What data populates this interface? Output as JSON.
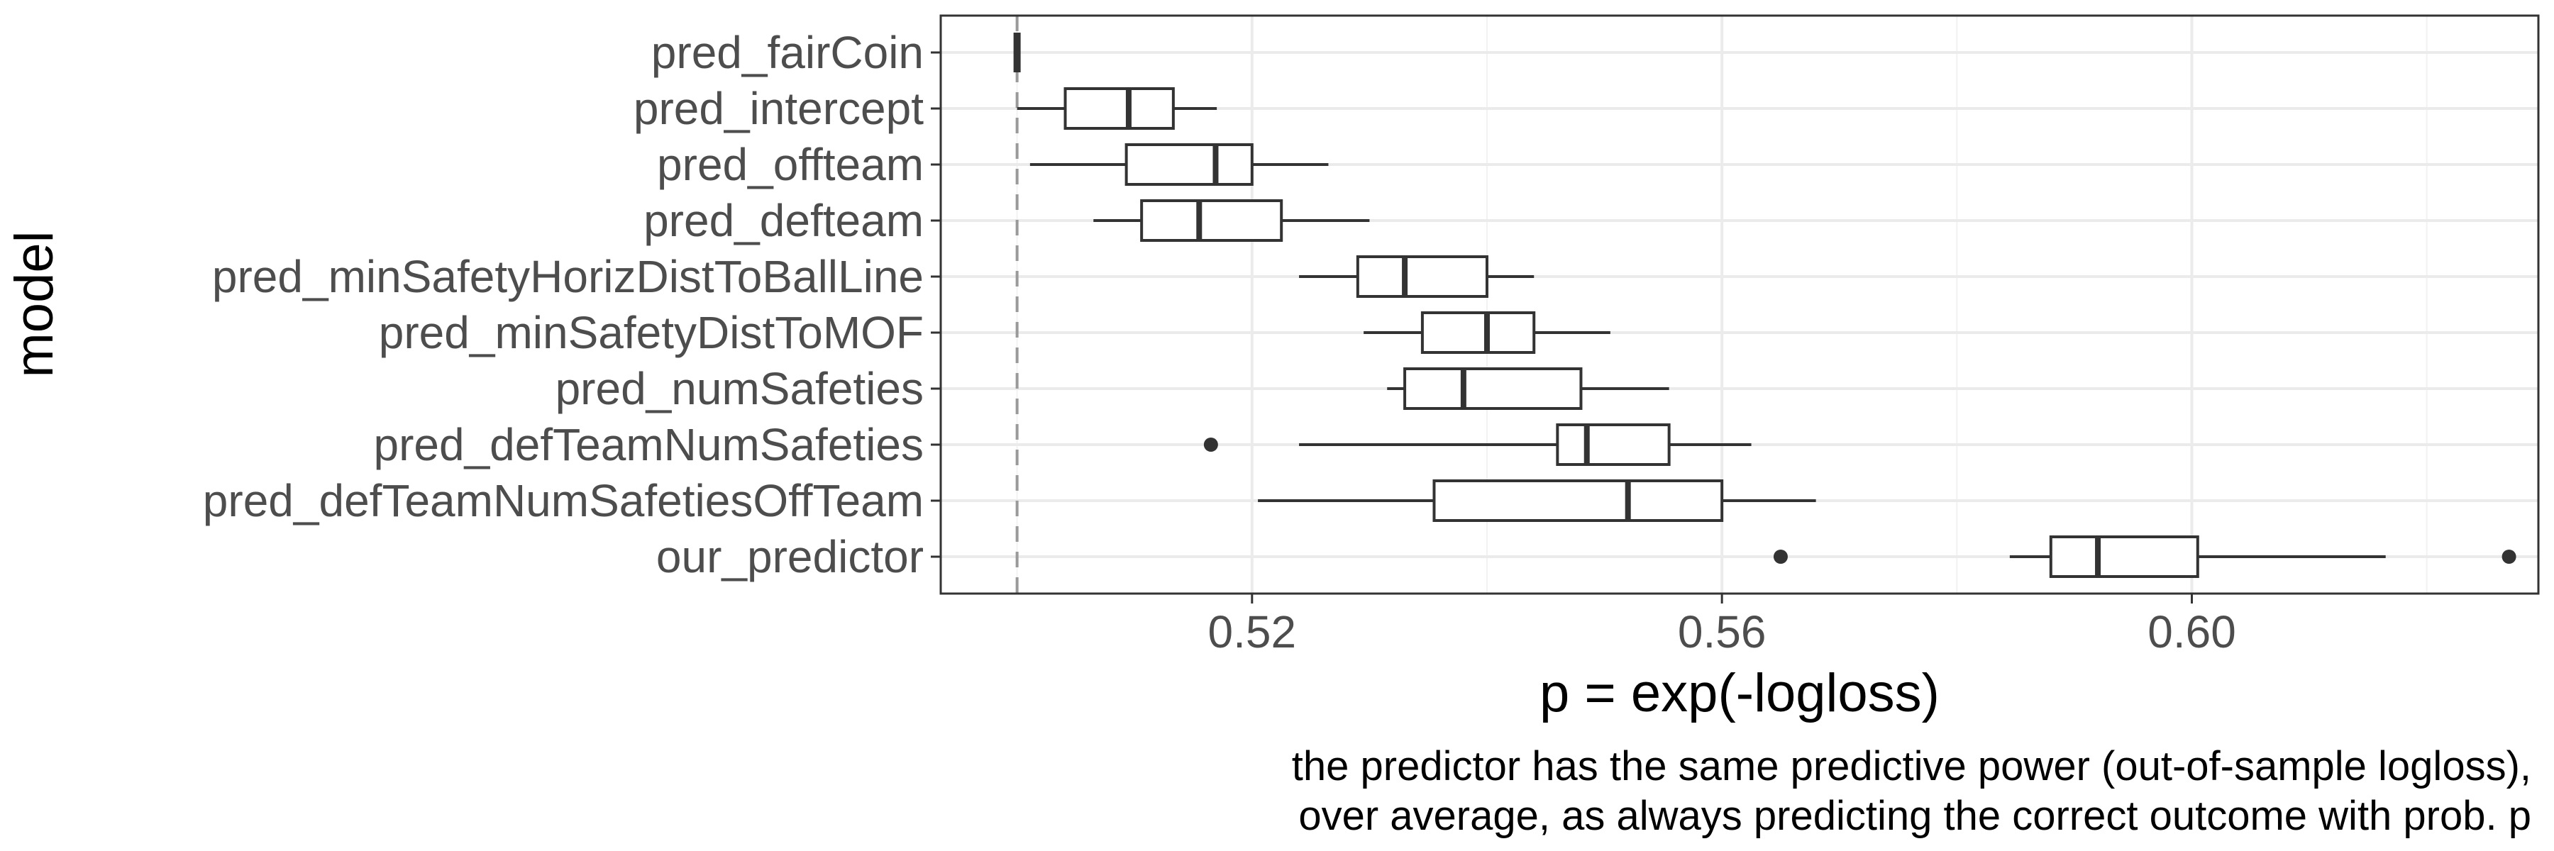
{
  "chart_data": {
    "type": "boxplot",
    "orientation": "horizontal",
    "title": "",
    "xlabel": "p = exp(-logloss)",
    "ylabel": "model",
    "caption_lines": [
      "the predictor has the same predictive power (out-of-sample logloss),",
      "over average, as always predicting the correct outcome with prob. p"
    ],
    "xlim": [
      0.4935,
      0.6295
    ],
    "xticks": [
      0.52,
      0.56,
      0.6
    ],
    "xtick_labels": [
      "0.52",
      "0.56",
      "0.60"
    ],
    "grid": true,
    "reference_line": {
      "x": 0.5,
      "style": "dashed"
    },
    "categories": [
      "pred_fairCoin",
      "pred_intercept",
      "pred_offteam",
      "pred_defteam",
      "pred_minSafetyHorizDistToBallLine",
      "pred_minSafetyDistToMOF",
      "pred_numSafeties",
      "pred_defTeamNumSafeties",
      "pred_defTeamNumSafetiesOffTeam",
      "our_predictor"
    ],
    "boxes": [
      {
        "whisker_low": 0.5,
        "q1": 0.5,
        "median": 0.5,
        "q3": 0.5,
        "whisker_high": 0.5,
        "outliers": []
      },
      {
        "whisker_low": 0.5,
        "q1": 0.5041,
        "median": 0.5095,
        "q3": 0.5133,
        "whisker_high": 0.517,
        "outliers": []
      },
      {
        "whisker_low": 0.5011,
        "q1": 0.5093,
        "median": 0.5169,
        "q3": 0.52,
        "whisker_high": 0.5265,
        "outliers": []
      },
      {
        "whisker_low": 0.5065,
        "q1": 0.5106,
        "median": 0.5155,
        "q3": 0.5225,
        "whisker_high": 0.53,
        "outliers": []
      },
      {
        "whisker_low": 0.524,
        "q1": 0.529,
        "median": 0.533,
        "q3": 0.54,
        "whisker_high": 0.544,
        "outliers": []
      },
      {
        "whisker_low": 0.5295,
        "q1": 0.5345,
        "median": 0.54,
        "q3": 0.544,
        "whisker_high": 0.5505,
        "outliers": []
      },
      {
        "whisker_low": 0.5315,
        "q1": 0.533,
        "median": 0.538,
        "q3": 0.548,
        "whisker_high": 0.5555,
        "outliers": []
      },
      {
        "whisker_low": 0.524,
        "q1": 0.546,
        "median": 0.5485,
        "q3": 0.5555,
        "whisker_high": 0.5625,
        "outliers": [
          0.5165
        ]
      },
      {
        "whisker_low": 0.5205,
        "q1": 0.5355,
        "median": 0.552,
        "q3": 0.56,
        "whisker_high": 0.568,
        "outliers": []
      },
      {
        "whisker_low": 0.5845,
        "q1": 0.588,
        "median": 0.592,
        "q3": 0.6005,
        "whisker_high": 0.6165,
        "outliers": [
          0.565,
          0.627
        ]
      }
    ]
  }
}
